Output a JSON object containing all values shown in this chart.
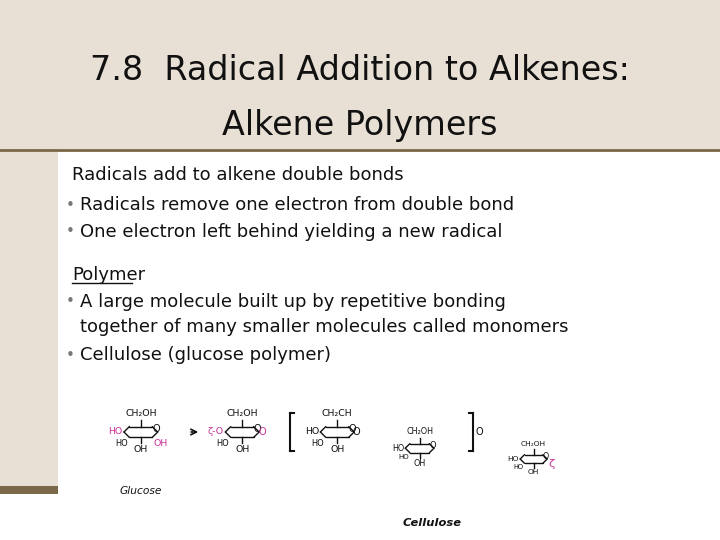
{
  "title_line1": "7.8  Radical Addition to Alkenes:",
  "title_line2": "Alkene Polymers",
  "bg_color": "#ffffff",
  "title_bg_color": "#e8e0d5",
  "left_block_color": "#e8e0d5",
  "bottom_bar_color": "#7a6848",
  "separator_color": "#7a6848",
  "header_text": "Radicals add to alkene double bonds",
  "bullet1": "Radicals remove one electron from double bond",
  "bullet2": "One electron left behind yielding a new radical",
  "polymer_label": "Polymer",
  "bullet3_line1": "A large molecule built up by repetitive bonding",
  "bullet3_line2": "together of many smaller molecules called monomers",
  "bullet4": "Cellulose (glucose polymer)",
  "title_fontsize": 24,
  "body_fontsize": 13,
  "diag_fontsize": 5.5,
  "title_color": "#111111",
  "body_color": "#111111",
  "pink_color": "#cc3399",
  "black_color": "#111111"
}
